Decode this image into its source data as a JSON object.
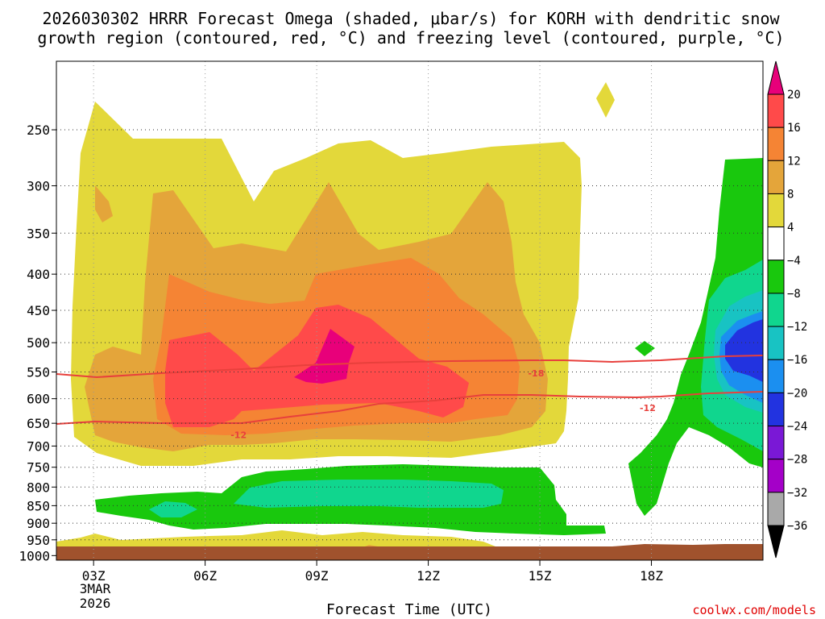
{
  "chart_data": {
    "type": "time-height cross section (filled contour)",
    "title_line1": "2026030302 HRRR Forecast Omega (shaded, μbar/s) for KORH with dendritic snow",
    "title_line2": "growth region (contoured, red, °C) and freezing level (contoured, purple, °C)",
    "xlabel": "Forecast Time (UTC)",
    "x_ticks": [
      "03Z",
      "06Z",
      "09Z",
      "12Z",
      "15Z",
      "18Z"
    ],
    "x_hours": [
      3,
      6,
      9,
      12,
      15,
      18
    ],
    "xlim_hours": [
      2,
      21
    ],
    "date_line1": "3MAR",
    "date_line2": "2026",
    "y_ticks": [
      250,
      300,
      350,
      400,
      450,
      500,
      550,
      600,
      650,
      700,
      750,
      800,
      850,
      900,
      950,
      1000
    ],
    "ylim_mb": [
      1015,
      200
    ],
    "units": "μbar/s",
    "colorbar_labels": [
      "20",
      "16",
      "12",
      "8",
      "4",
      "−4",
      "−8",
      "−12",
      "−16",
      "−20",
      "−24",
      "−28",
      "−32",
      "−36"
    ],
    "colorbar_colors": [
      "#e8007a",
      "#ff4a4a",
      "#f58434",
      "#e4a53a",
      "#e3d83a",
      "#ffffff",
      "#19c80d",
      "#10d68e",
      "#18c3c3",
      "#1b8ff0",
      "#2233e0",
      "#7a18d6",
      "#a400c8",
      "#a9a9a9",
      "#000000"
    ],
    "omega_regions": [
      {
        "level": "4 to 8",
        "color": "#e3d83a"
      },
      {
        "level": "8 to 12",
        "color": "#e4a53a"
      },
      {
        "level": "12 to 16",
        "color": "#f58434"
      },
      {
        "level": "16 to 20",
        "color": "#ff4a4a"
      },
      {
        "level": ">20",
        "color": "#e8007a"
      },
      {
        "level": "-4 to -8",
        "color": "#19c80d"
      },
      {
        "level": "-8 to -12",
        "color": "#10d68e"
      },
      {
        "level": "-12 to -16",
        "color": "#18c3c3"
      },
      {
        "level": "-16 to -20",
        "color": "#1b8ff0"
      },
      {
        "level": "-20 to -24",
        "color": "#2233e0"
      }
    ],
    "dgz_contours": [
      {
        "label": "-18",
        "hour": 14.9,
        "pressure": 552
      },
      {
        "label": "-12",
        "hour": 6.9,
        "pressure": 675
      },
      {
        "label": "-12",
        "hour": 17.9,
        "pressure": 618
      }
    ],
    "terrain_color": "#a0522d",
    "credit": "coolwx.com/models"
  }
}
